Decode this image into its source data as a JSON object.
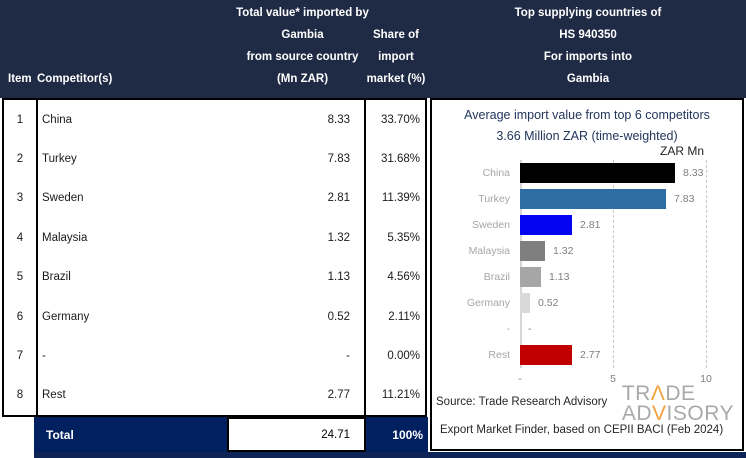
{
  "colors": {
    "header_navy": "#1f2a44",
    "total_navy": "#002060",
    "bottom_strip_navy": "#0e2356",
    "logo_gray": "#a9a9a9",
    "logo_accent_orange": "#f2a13c",
    "chart_title_navy": "#22365c"
  },
  "header": {
    "item": "Item",
    "competitor": "Competitor(s)",
    "value_lines": [
      "Total value* imported by",
      "Gambia",
      "from source country",
      "(Mn ZAR)"
    ],
    "share_lines": [
      "Share of",
      "import",
      "market (%)"
    ],
    "right_lines": [
      "Top supplying countries of",
      "HS 940350",
      "For imports into",
      "Gambia"
    ]
  },
  "table": {
    "rows": [
      {
        "item": "1",
        "competitor": "China",
        "value": "8.33",
        "share": "33.70%"
      },
      {
        "item": "2",
        "competitor": "Turkey",
        "value": "7.83",
        "share": "31.68%"
      },
      {
        "item": "3",
        "competitor": "Sweden",
        "value": "2.81",
        "share": "11.39%"
      },
      {
        "item": "4",
        "competitor": "Malaysia",
        "value": "1.32",
        "share": "5.35%"
      },
      {
        "item": "5",
        "competitor": "Brazil",
        "value": "1.13",
        "share": "4.56%"
      },
      {
        "item": "6",
        "competitor": "Germany",
        "value": "0.52",
        "share": "2.11%"
      },
      {
        "item": "7",
        "competitor": "-",
        "value": "-",
        "share": "0.00%"
      },
      {
        "item": "8",
        "competitor": "Rest",
        "value": "2.77",
        "share": "11.21%"
      }
    ],
    "total": {
      "label": "Total",
      "value": "24.71",
      "share": "100%"
    }
  },
  "chart_data": {
    "type": "bar",
    "orientation": "horizontal",
    "title": "Average import value from top 6 competitors",
    "subtitle": "3.66 Million ZAR (time-weighted)",
    "axis_unit_label": "ZAR Mn",
    "categories": [
      "China",
      "Turkey",
      "Sweden",
      "Malaysia",
      "Brazil",
      "Germany",
      "-",
      "Rest"
    ],
    "values": [
      8.33,
      7.83,
      2.81,
      1.32,
      1.13,
      0.52,
      null,
      2.77
    ],
    "value_labels": [
      "8.33",
      "7.83",
      "2.81",
      "1.32",
      "1.13",
      "0.52",
      "-",
      "2.77"
    ],
    "bar_colors": [
      "#000000",
      "#2e6da4",
      "#0404f0",
      "#7f7f7f",
      "#a6a6a6",
      "#d9d9d9",
      "transparent",
      "#c00000"
    ],
    "xlim": [
      0,
      10
    ],
    "x_ticks": [
      "-",
      "5",
      "10"
    ],
    "x_tick_values": [
      0,
      5,
      10
    ],
    "gridlines": "dashed vertical at 5 and 10",
    "legend": "none"
  },
  "footer": {
    "source_line1": "Source: Trade Research Advisory",
    "source_line2": "Export Market Finder, based on CEPII BACI (Feb 2024)",
    "logo": {
      "line1_pre": "TR",
      "line1_accent": "Λ",
      "line1_post": "DE",
      "line2_pre": "AD",
      "line2_accent": "V",
      "line2_post": "ISORY"
    }
  }
}
